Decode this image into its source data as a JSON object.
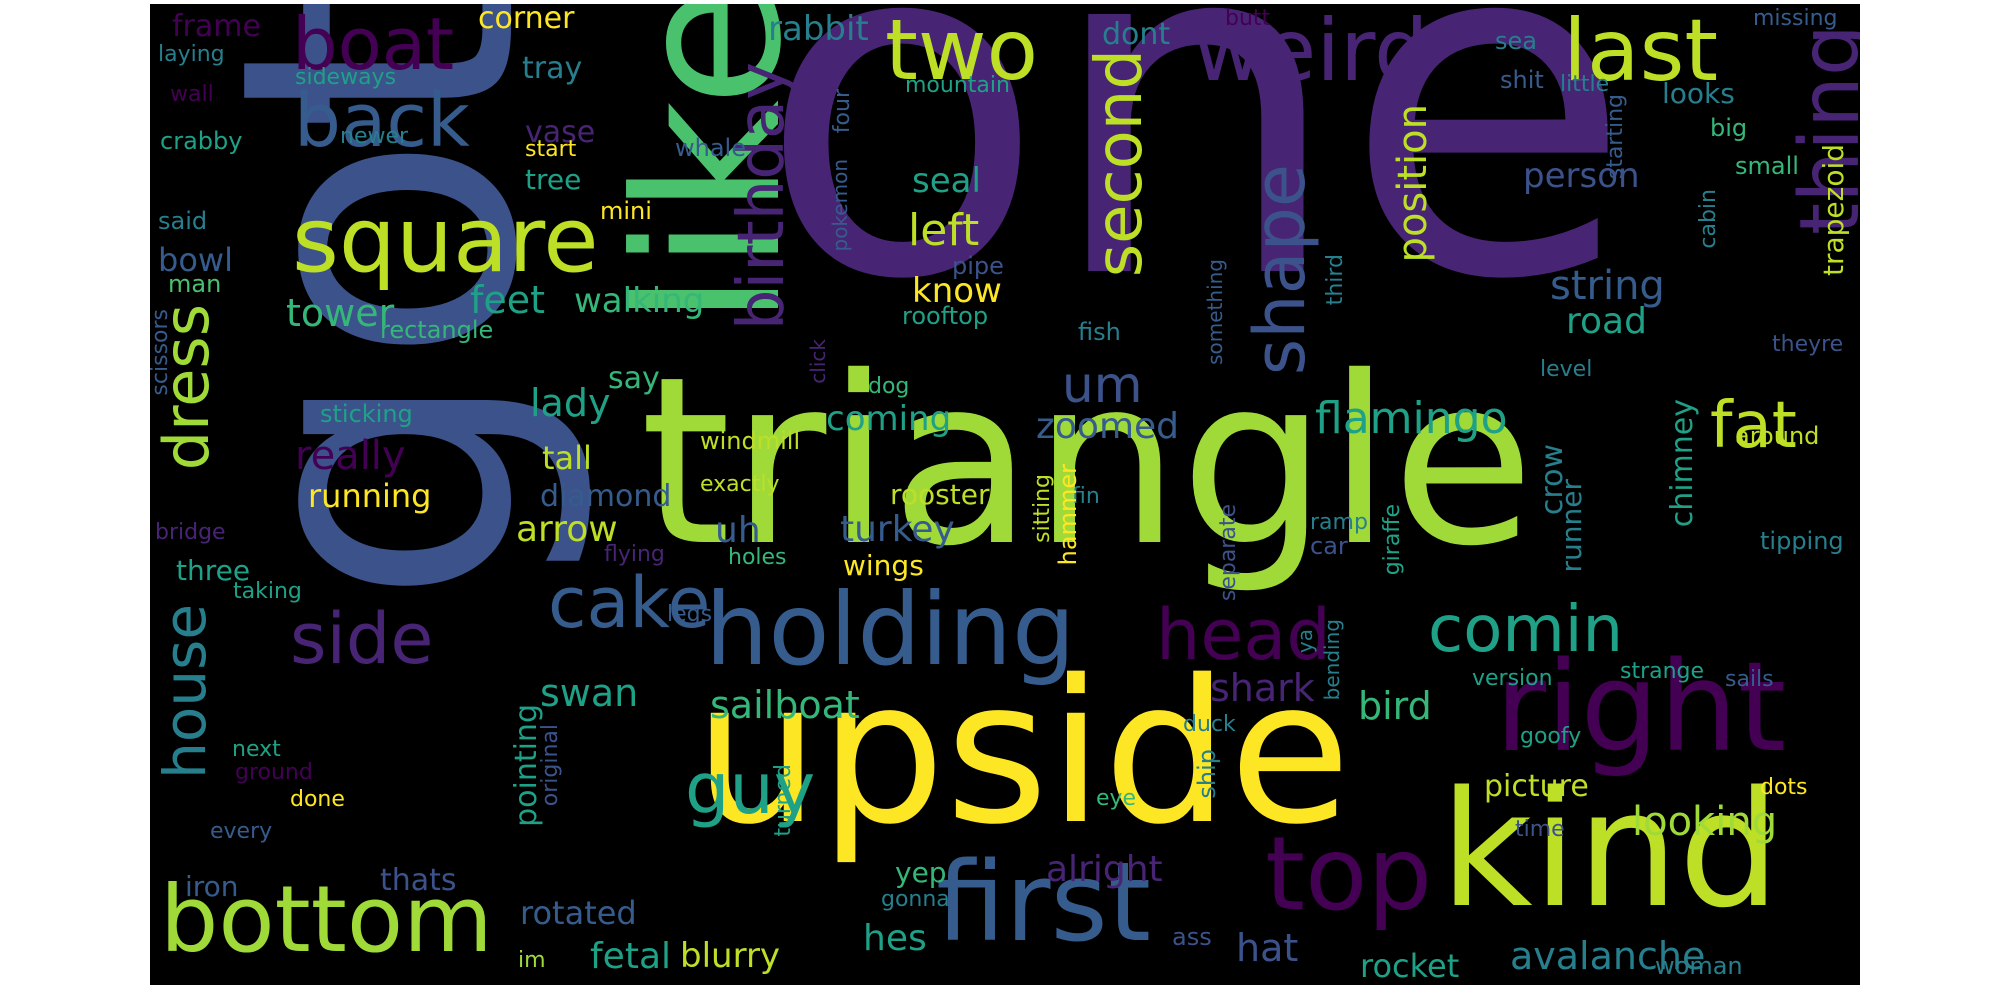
{
  "palette": {
    "c1": "#46327e",
    "c2": "#3b528b",
    "c3": "#365c8d",
    "c4": "#277f8e",
    "c5": "#1fa187",
    "c6": "#35b779",
    "c7": "#4ac16d",
    "c8": "#a0da39",
    "c9": "#bddf26",
    "c10": "#fde725",
    "c11": "#440154",
    "c12": "#482475"
  },
  "words": [
    {
      "t": "one",
      "c": "c12"
    },
    {
      "t": "got",
      "c": "c2"
    },
    {
      "t": "like",
      "c": "c7"
    },
    {
      "t": "triangle",
      "c": "c8"
    },
    {
      "t": "upside",
      "c": "c10"
    },
    {
      "t": "kind",
      "c": "c9"
    },
    {
      "t": "right",
      "c": "c11"
    },
    {
      "t": "holding",
      "c": "c3"
    },
    {
      "t": "first",
      "c": "c3"
    },
    {
      "t": "top",
      "c": "c11"
    },
    {
      "t": "bottom",
      "c": "c8"
    },
    {
      "t": "square",
      "c": "c9"
    },
    {
      "t": "boat",
      "c": "c11"
    },
    {
      "t": "two",
      "c": "c9"
    },
    {
      "t": "weird",
      "c": "c12"
    },
    {
      "t": "last",
      "c": "c9"
    },
    {
      "t": "thing",
      "c": "c12"
    },
    {
      "t": "back",
      "c": "c3"
    },
    {
      "t": "birthday",
      "c": "c12"
    },
    {
      "t": "second",
      "c": "c9"
    },
    {
      "t": "shape",
      "c": "c2"
    },
    {
      "t": "cake",
      "c": "c3"
    },
    {
      "t": "side",
      "c": "c12"
    },
    {
      "t": "head",
      "c": "c11"
    },
    {
      "t": "guy",
      "c": "c5"
    },
    {
      "t": "comin",
      "c": "c5"
    },
    {
      "t": "fat",
      "c": "c9"
    },
    {
      "t": "dress",
      "c": "c8"
    },
    {
      "t": "house",
      "c": "c4"
    },
    {
      "t": "um",
      "c": "c2"
    },
    {
      "t": "position",
      "c": "c9"
    },
    {
      "t": "frame",
      "c": "c11"
    },
    {
      "t": "corner",
      "c": "c10"
    },
    {
      "t": "rabbit",
      "c": "c4"
    },
    {
      "t": "dont",
      "c": "c4"
    },
    {
      "t": "butt",
      "c": "c11"
    },
    {
      "t": "missing",
      "c": "c3"
    },
    {
      "t": "laying",
      "c": "c4"
    },
    {
      "t": "tray",
      "c": "c4"
    },
    {
      "t": "sea",
      "c": "c4"
    },
    {
      "t": "wall",
      "c": "c11"
    },
    {
      "t": "sideways",
      "c": "c5"
    },
    {
      "t": "mountain",
      "c": "c5"
    },
    {
      "t": "shit",
      "c": "c3"
    },
    {
      "t": "little",
      "c": "c4"
    },
    {
      "t": "looks",
      "c": "c4"
    },
    {
      "t": "newer",
      "c": "c4"
    },
    {
      "t": "vase",
      "c": "c12"
    },
    {
      "t": "crabby",
      "c": "c5"
    },
    {
      "t": "whale",
      "c": "c3"
    },
    {
      "t": "start",
      "c": "c10"
    },
    {
      "t": "four",
      "c": "c3"
    },
    {
      "t": "big",
      "c": "c6"
    },
    {
      "t": "starting",
      "c": "c3"
    },
    {
      "t": "small",
      "c": "c6"
    },
    {
      "t": "trapezoid",
      "c": "c9"
    },
    {
      "t": "tree",
      "c": "c5"
    },
    {
      "t": "pokemon",
      "c": "c3"
    },
    {
      "t": "seal",
      "c": "c5"
    },
    {
      "t": "person",
      "c": "c2"
    },
    {
      "t": "said",
      "c": "c4"
    },
    {
      "t": "mini",
      "c": "c10"
    },
    {
      "t": "left",
      "c": "c9"
    },
    {
      "t": "cabin",
      "c": "c4"
    },
    {
      "t": "bowl",
      "c": "c3"
    },
    {
      "t": "pipe",
      "c": "c2"
    },
    {
      "t": "know",
      "c": "c10"
    },
    {
      "t": "string",
      "c": "c3"
    },
    {
      "t": "man",
      "c": "c7"
    },
    {
      "t": "tower",
      "c": "c6"
    },
    {
      "t": "feet",
      "c": "c5"
    },
    {
      "t": "walking",
      "c": "c6"
    },
    {
      "t": "rooftop",
      "c": "c5"
    },
    {
      "t": "third",
      "c": "c4"
    },
    {
      "t": "road",
      "c": "c5"
    },
    {
      "t": "rectangle",
      "c": "c6"
    },
    {
      "t": "fish",
      "c": "c4"
    },
    {
      "t": "something",
      "c": "c3"
    },
    {
      "t": "theyre",
      "c": "c2"
    },
    {
      "t": "scissors",
      "c": "c3"
    },
    {
      "t": "say",
      "c": "c6"
    },
    {
      "t": "click",
      "c": "c12"
    },
    {
      "t": "dog",
      "c": "c6"
    },
    {
      "t": "level",
      "c": "c4"
    },
    {
      "t": "lady",
      "c": "c5"
    },
    {
      "t": "sticking",
      "c": "c5"
    },
    {
      "t": "coming",
      "c": "c5"
    },
    {
      "t": "zoomed",
      "c": "c3"
    },
    {
      "t": "flamingo",
      "c": "c5"
    },
    {
      "t": "chimney",
      "c": "c5"
    },
    {
      "t": "around",
      "c": "c9"
    },
    {
      "t": "really",
      "c": "c11"
    },
    {
      "t": "windmill",
      "c": "c9"
    },
    {
      "t": "tall",
      "c": "c9"
    },
    {
      "t": "running",
      "c": "c10"
    },
    {
      "t": "exactly",
      "c": "c9"
    },
    {
      "t": "crow",
      "c": "c4"
    },
    {
      "t": "diamond",
      "c": "c3"
    },
    {
      "t": "rooster",
      "c": "c9"
    },
    {
      "t": "runner",
      "c": "c4"
    },
    {
      "t": "bridge",
      "c": "c12"
    },
    {
      "t": "arrow",
      "c": "c9"
    },
    {
      "t": "uh",
      "c": "c3"
    },
    {
      "t": "turkey",
      "c": "c3"
    },
    {
      "t": "fin",
      "c": "c4"
    },
    {
      "t": "sitting",
      "c": "c9"
    },
    {
      "t": "hammer",
      "c": "c10"
    },
    {
      "t": "ramp",
      "c": "c4"
    },
    {
      "t": "tipping",
      "c": "c4"
    },
    {
      "t": "three",
      "c": "c5"
    },
    {
      "t": "flying",
      "c": "c12"
    },
    {
      "t": "holes",
      "c": "c6"
    },
    {
      "t": "wings",
      "c": "c10"
    },
    {
      "t": "separate",
      "c": "c2"
    },
    {
      "t": "car",
      "c": "c2"
    },
    {
      "t": "giraffe",
      "c": "c5"
    },
    {
      "t": "taking",
      "c": "c5"
    },
    {
      "t": "legs",
      "c": "c3"
    },
    {
      "t": "ya",
      "c": "c4"
    },
    {
      "t": "bending",
      "c": "c4"
    },
    {
      "t": "version",
      "c": "c5"
    },
    {
      "t": "strange",
      "c": "c5"
    },
    {
      "t": "sails",
      "c": "c3"
    },
    {
      "t": "pointing",
      "c": "c5"
    },
    {
      "t": "swan",
      "c": "c5"
    },
    {
      "t": "shark",
      "c": "c12"
    },
    {
      "t": "bird",
      "c": "c6"
    },
    {
      "t": "sailboat",
      "c": "c6"
    },
    {
      "t": "duck",
      "c": "c4"
    },
    {
      "t": "next",
      "c": "c5"
    },
    {
      "t": "original",
      "c": "c2"
    },
    {
      "t": "turned",
      "c": "c5"
    },
    {
      "t": "goofy",
      "c": "c5"
    },
    {
      "t": "ground",
      "c": "c11"
    },
    {
      "t": "ship",
      "c": "c4"
    },
    {
      "t": "picture",
      "c": "c9"
    },
    {
      "t": "eye",
      "c": "c6"
    },
    {
      "t": "dots",
      "c": "c10"
    },
    {
      "t": "done",
      "c": "c10"
    },
    {
      "t": "looking",
      "c": "c8"
    },
    {
      "t": "every",
      "c": "c3"
    },
    {
      "t": "time",
      "c": "c2"
    },
    {
      "t": "alright",
      "c": "c12"
    },
    {
      "t": "iron",
      "c": "c3"
    },
    {
      "t": "thats",
      "c": "c2"
    },
    {
      "t": "yep",
      "c": "c6"
    },
    {
      "t": "gonna",
      "c": "c4"
    },
    {
      "t": "rotated",
      "c": "c3"
    },
    {
      "t": "hes",
      "c": "c5"
    },
    {
      "t": "ass",
      "c": "c2"
    },
    {
      "t": "woman",
      "c": "c4"
    },
    {
      "t": "fetal",
      "c": "c5"
    },
    {
      "t": "blurry",
      "c": "c9"
    },
    {
      "t": "hat",
      "c": "c2"
    },
    {
      "t": "rocket",
      "c": "c5"
    },
    {
      "t": "avalanche",
      "c": "c4"
    },
    {
      "t": "im",
      "c": "c8"
    }
  ]
}
